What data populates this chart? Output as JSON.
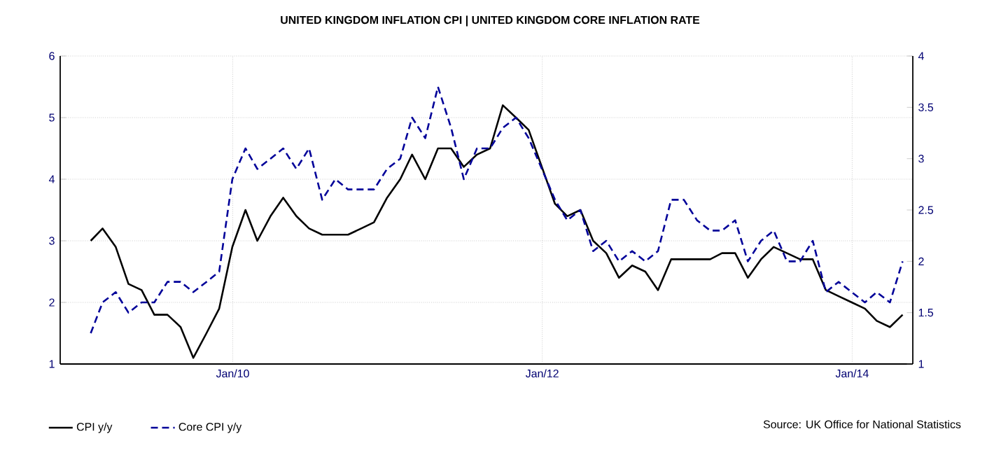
{
  "chart_data": {
    "type": "line",
    "title": "UNITED KINGDOM INFLATION CPI |  UNITED KINGDOM CORE INFLATION RATE",
    "x": [
      "2009-01-31",
      "2009-02-28",
      "2009-03-31",
      "2009-04-30",
      "2009-05-31",
      "2009-06-30",
      "2009-07-31",
      "2009-08-31",
      "2009-09-30",
      "2009-10-31",
      "2009-11-30",
      "2009-12-31",
      "2010-01-31",
      "2010-02-28",
      "2010-03-31",
      "2010-04-30",
      "2010-05-31",
      "2010-06-30",
      "2010-07-31",
      "2010-08-31",
      "2010-09-30",
      "2010-10-31",
      "2010-11-30",
      "2010-12-31",
      "2011-01-31",
      "2011-02-28",
      "2011-03-31",
      "2011-04-30",
      "2011-05-31",
      "2011-06-30",
      "2011-07-31",
      "2011-08-31",
      "2011-09-30",
      "2011-10-31",
      "2011-11-30",
      "2011-12-31",
      "2012-01-31",
      "2012-02-29",
      "2012-03-31",
      "2012-04-30",
      "2012-05-31",
      "2012-06-30",
      "2012-07-31",
      "2012-08-31",
      "2012-09-30",
      "2012-10-31",
      "2012-11-30",
      "2012-12-31",
      "2013-01-31",
      "2013-02-28",
      "2013-03-31",
      "2013-04-30",
      "2013-05-31",
      "2013-06-30",
      "2013-07-31",
      "2013-08-31",
      "2013-09-30",
      "2013-10-31",
      "2013-11-30",
      "2013-12-31",
      "2014-01-31",
      "2014-02-28",
      "2014-03-31",
      "2014-04-30"
    ],
    "series": [
      {
        "name": "CPI y/y",
        "color": "#000000",
        "line_style": "solid",
        "values": [
          3.0,
          3.2,
          2.9,
          2.3,
          2.2,
          1.8,
          1.8,
          1.6,
          1.1,
          1.5,
          1.9,
          2.9,
          3.5,
          3.0,
          3.4,
          3.7,
          3.4,
          3.2,
          3.1,
          3.1,
          3.1,
          3.2,
          3.3,
          3.7,
          4.0,
          4.4,
          4.0,
          4.5,
          4.5,
          4.2,
          4.4,
          4.5,
          5.2,
          5.0,
          4.8,
          4.2,
          3.6,
          3.4,
          3.5,
          3.0,
          2.8,
          2.4,
          2.6,
          2.5,
          2.2,
          2.7,
          2.7,
          2.7,
          2.7,
          2.8,
          2.8,
          2.4,
          2.7,
          2.9,
          2.8,
          2.7,
          2.7,
          2.2,
          2.1,
          2.0,
          1.9,
          1.7,
          1.6,
          1.8
        ]
      },
      {
        "name": "Core CPI y/y",
        "color": "#000099",
        "line_style": "dashed",
        "axis": "y2",
        "values": [
          1.3,
          1.6,
          1.7,
          1.5,
          1.6,
          1.6,
          1.8,
          1.8,
          1.7,
          1.8,
          1.9,
          2.8,
          3.1,
          2.9,
          3.0,
          3.1,
          2.9,
          3.1,
          2.6,
          2.8,
          2.7,
          2.7,
          2.7,
          2.9,
          3.0,
          3.4,
          3.2,
          3.7,
          3.3,
          2.8,
          3.1,
          3.1,
          3.3,
          3.4,
          3.2,
          2.9,
          2.6,
          2.4,
          2.5,
          2.1,
          2.2,
          2.0,
          2.1,
          2.0,
          2.1,
          2.6,
          2.6,
          2.4,
          2.3,
          2.3,
          2.4,
          2.0,
          2.2,
          2.3,
          2.0,
          2.0,
          2.2,
          1.7,
          1.8,
          1.7,
          1.6,
          1.7,
          1.6,
          2.0
        ]
      }
    ],
    "xlim": [
      "2008-11-20",
      "2014-05-24"
    ],
    "xticks": [
      {
        "value": "2010-01-01",
        "label": "Jan/10"
      },
      {
        "value": "2012-01-01",
        "label": "Jan/12"
      },
      {
        "value": "2014-01-01",
        "label": "Jan/14"
      }
    ],
    "ylim": [
      1,
      6
    ],
    "yticks": [
      1,
      2,
      3,
      4,
      5,
      6
    ],
    "y2lim": [
      1,
      4
    ],
    "y2ticks": [
      1,
      1.5,
      2,
      2.5,
      3,
      3.5,
      4
    ],
    "grid": true,
    "legend": "bottom left",
    "marker": "none",
    "annotations": [
      "Source: UK Office for National Statistics"
    ]
  }
}
